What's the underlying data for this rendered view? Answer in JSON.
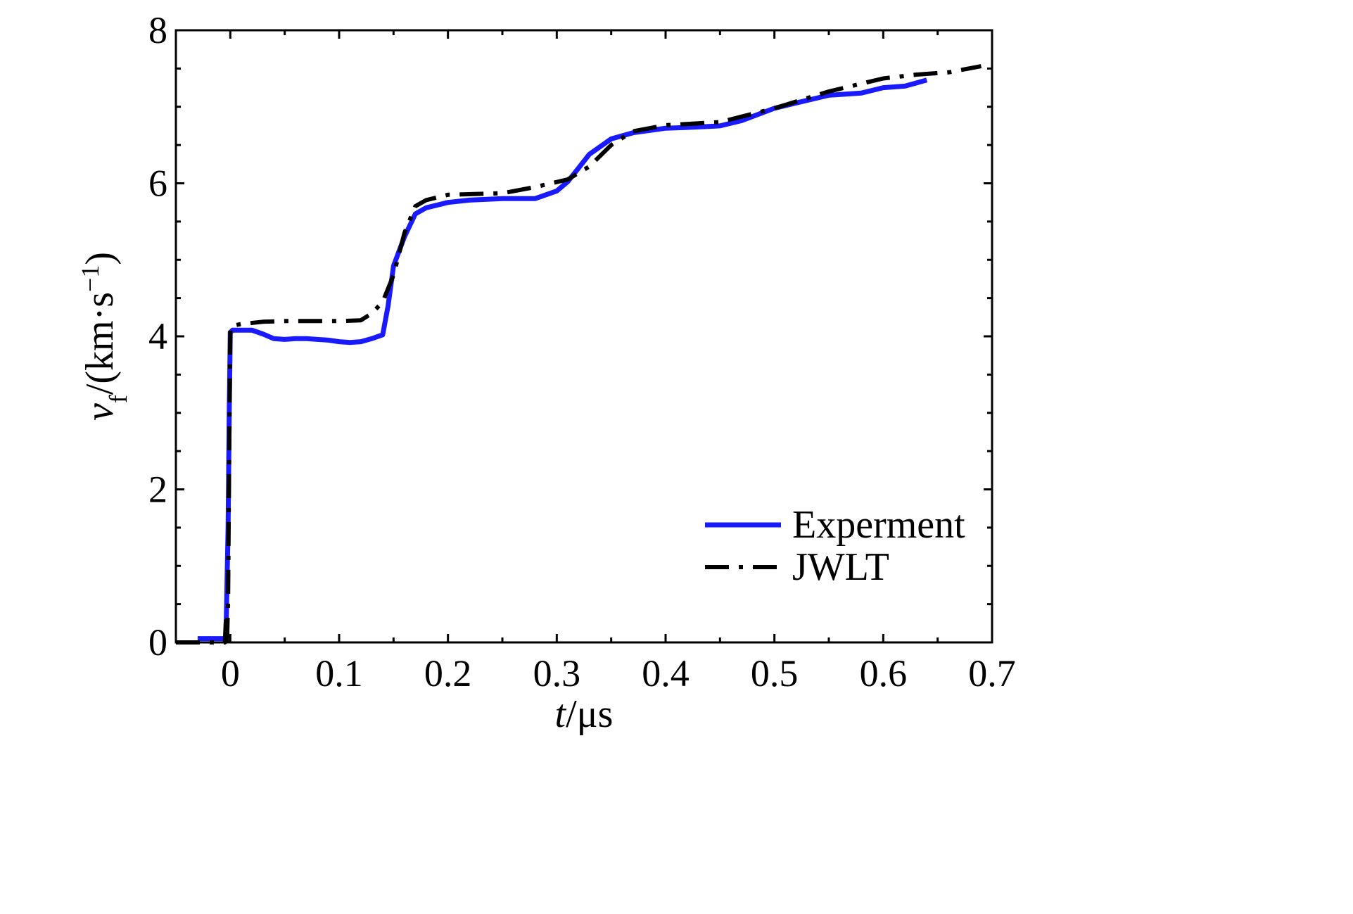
{
  "chart_data": {
    "type": "line",
    "xlabel": {
      "italic": "t",
      "rest": "/μs"
    },
    "ylabel": {
      "italic": "v",
      "sub": "f",
      "rest": "/(km·s",
      "sup": "−1",
      "close": ")"
    },
    "xlim": [
      -0.05,
      0.7
    ],
    "ylim": [
      0,
      8
    ],
    "x_ticks": [
      0,
      0.1,
      0.2,
      0.3,
      0.4,
      0.5,
      0.6,
      0.7
    ],
    "x_tick_labels": [
      "0",
      "0.1",
      "0.2",
      "0.3",
      "0.4",
      "0.5",
      "0.6",
      "0.7"
    ],
    "y_ticks": [
      0,
      2,
      4,
      6,
      8
    ],
    "y_tick_labels": [
      "0",
      "2",
      "4",
      "6",
      "8"
    ],
    "legend_position": "bottom-right",
    "grid": false,
    "series": [
      {
        "name": "Experment",
        "style": "solid",
        "color": "#1a1aff",
        "x": [
          -0.03,
          -0.02,
          -0.004,
          -0.002,
          -0.001,
          0.0,
          0.002,
          0.01,
          0.02,
          0.03,
          0.04,
          0.05,
          0.06,
          0.07,
          0.08,
          0.09,
          0.1,
          0.11,
          0.12,
          0.13,
          0.14,
          0.145,
          0.15,
          0.16,
          0.17,
          0.18,
          0.2,
          0.22,
          0.25,
          0.28,
          0.3,
          0.31,
          0.32,
          0.33,
          0.35,
          0.37,
          0.39,
          0.4,
          0.42,
          0.45,
          0.47,
          0.5,
          0.52,
          0.55,
          0.58,
          0.6,
          0.62,
          0.64
        ],
        "y": [
          0.05,
          0.05,
          0.05,
          1.5,
          3.0,
          4.05,
          4.08,
          4.08,
          4.08,
          4.03,
          3.97,
          3.96,
          3.97,
          3.97,
          3.96,
          3.95,
          3.93,
          3.92,
          3.93,
          3.97,
          4.02,
          4.4,
          4.92,
          5.3,
          5.6,
          5.68,
          5.75,
          5.78,
          5.8,
          5.8,
          5.9,
          6.02,
          6.2,
          6.38,
          6.58,
          6.66,
          6.7,
          6.72,
          6.73,
          6.75,
          6.82,
          6.98,
          7.05,
          7.15,
          7.18,
          7.25,
          7.27,
          7.35
        ]
      },
      {
        "name": "JWLT",
        "style": "dash-dot",
        "color": "#000000",
        "x": [
          -0.05,
          -0.02,
          -0.005,
          -0.004,
          -0.003,
          -0.002,
          -0.001,
          0.0,
          0.002,
          0.01,
          0.03,
          0.05,
          0.08,
          0.1,
          0.12,
          0.13,
          0.14,
          0.15,
          0.16,
          0.17,
          0.18,
          0.2,
          0.25,
          0.28,
          0.31,
          0.33,
          0.35,
          0.37,
          0.4,
          0.45,
          0.5,
          0.55,
          0.6,
          0.63,
          0.66,
          0.69
        ],
        "y": [
          0.0,
          0.0,
          0.0,
          0.3,
          0.0,
          0.6,
          2.5,
          4.1,
          4.14,
          4.16,
          4.19,
          4.2,
          4.2,
          4.2,
          4.21,
          4.3,
          4.45,
          4.8,
          5.35,
          5.7,
          5.78,
          5.85,
          5.87,
          5.95,
          6.05,
          6.22,
          6.5,
          6.68,
          6.76,
          6.8,
          6.98,
          7.2,
          7.37,
          7.42,
          7.45,
          7.53
        ]
      }
    ]
  }
}
